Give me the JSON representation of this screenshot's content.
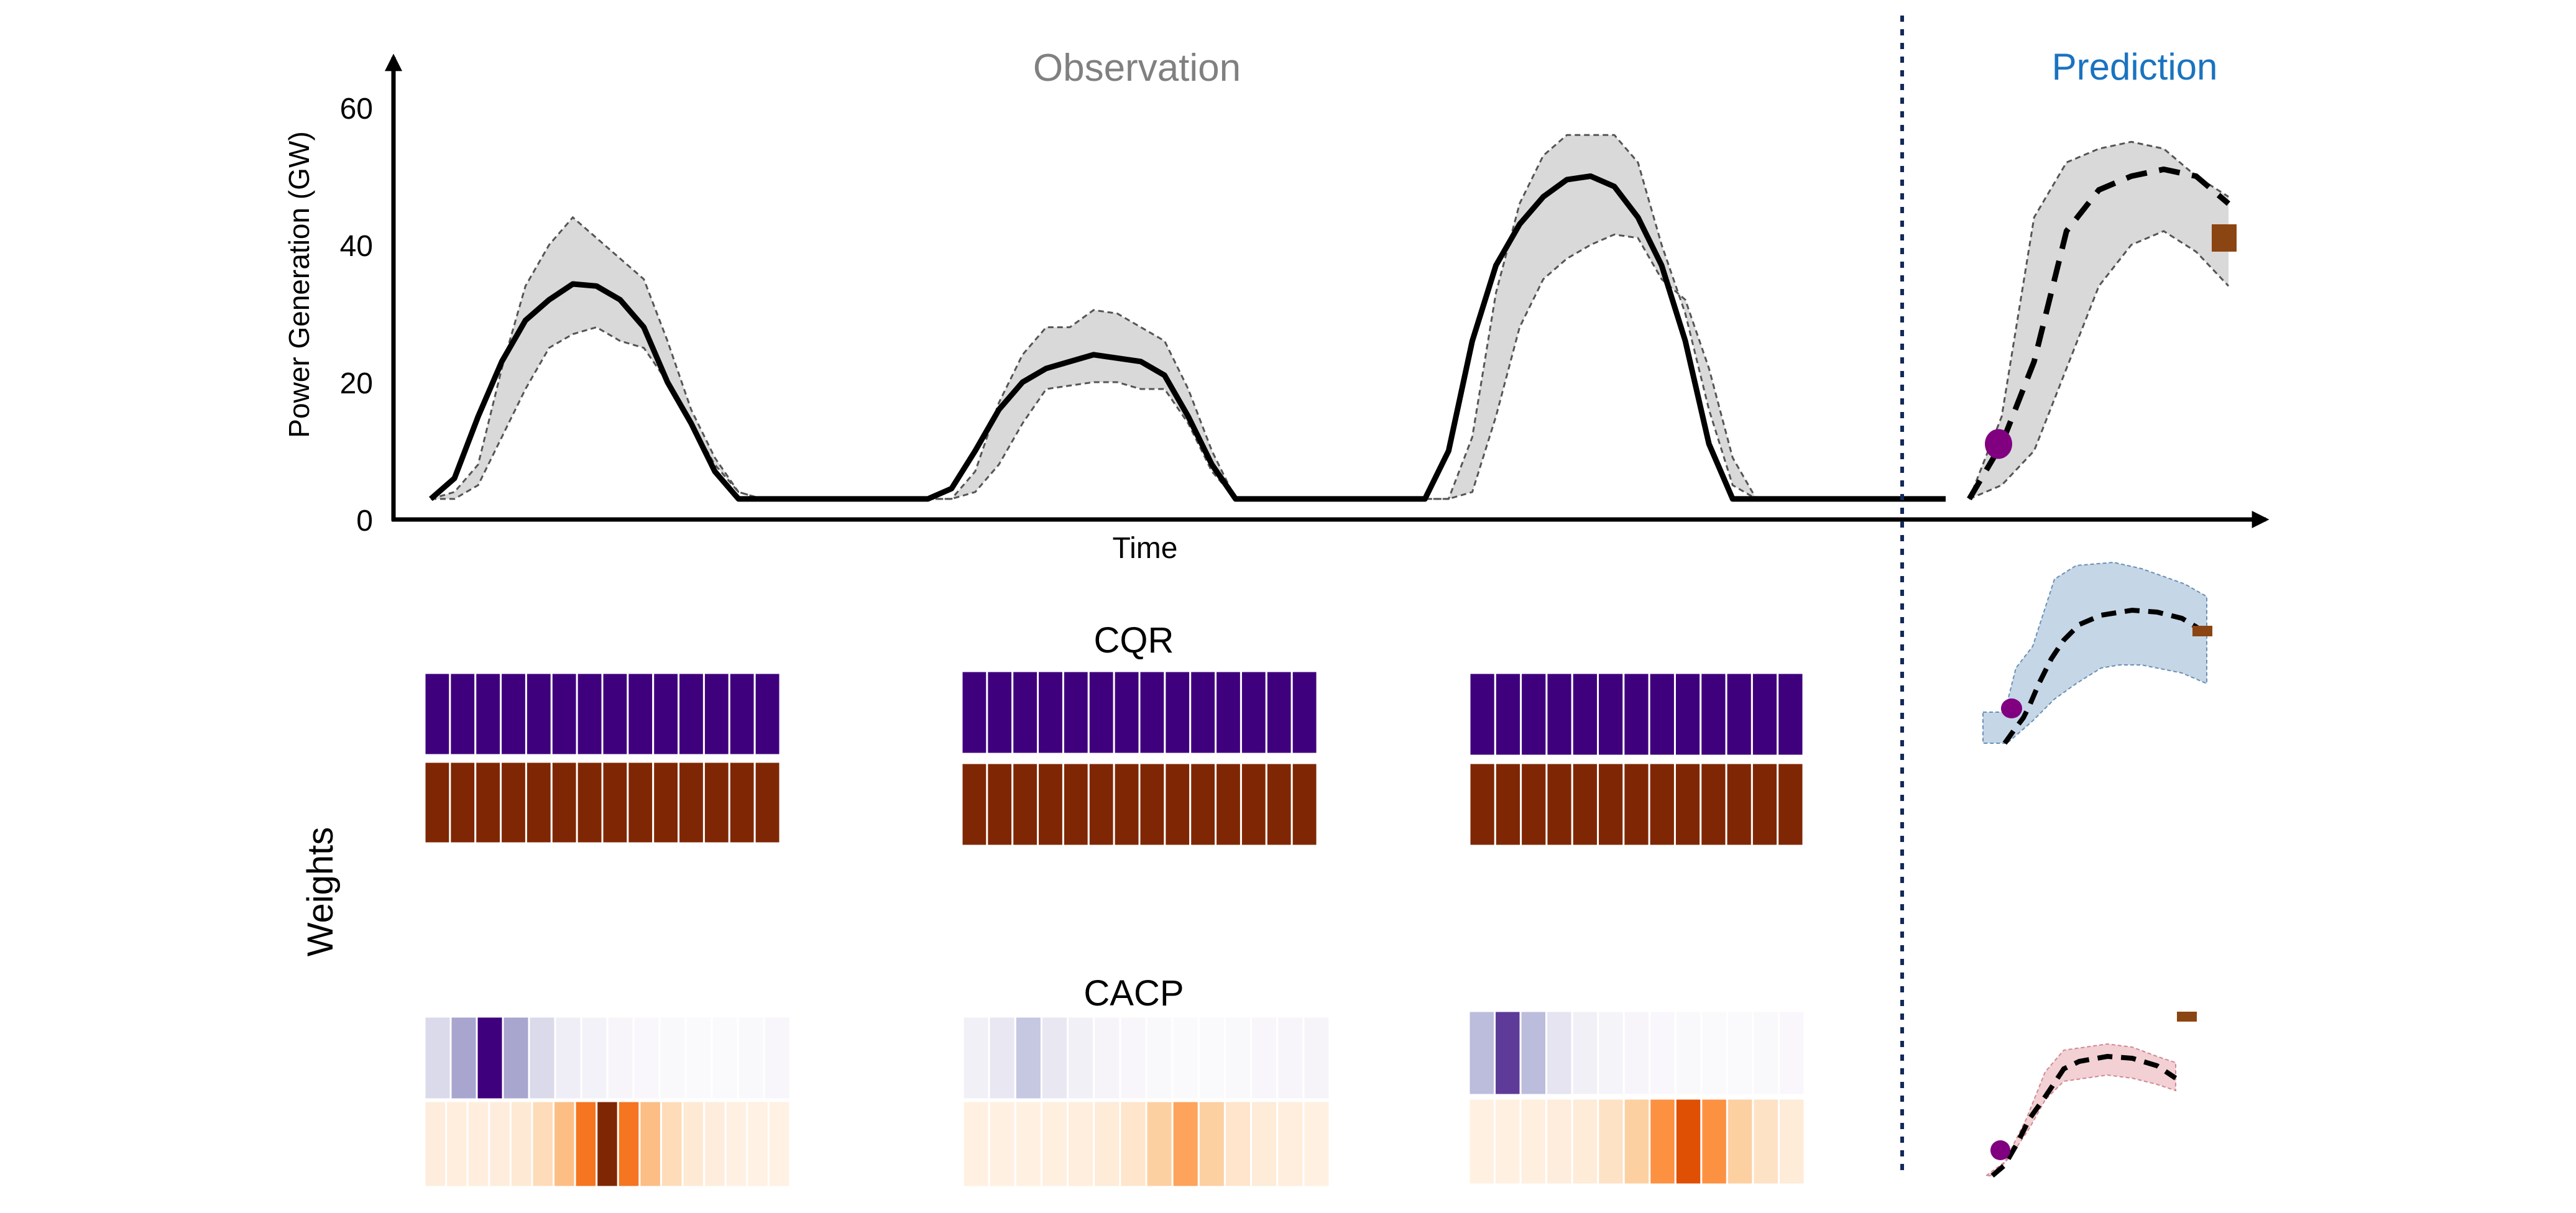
{
  "chart_data": {
    "type": "line",
    "title_left": "Observation",
    "title_right": "Prediction",
    "xlabel": "Time",
    "ylabel": "Power Generation (GW)",
    "yticks": [
      0,
      20,
      40,
      60
    ],
    "ylim": [
      0,
      68
    ],
    "grid": false,
    "colors": {
      "observation_title": "#808080",
      "prediction_title": "#1a73c0",
      "separator": "#14285a",
      "band_fill": "#d9d9d9",
      "band_edge": "#555555",
      "start_marker": "#800080",
      "end_marker": "#8b4513",
      "cqr_band": "#c5d6e6",
      "cacp_band": "#f2d0d4",
      "purple_max": "#3f007d",
      "orange_max": "#7f2704"
    },
    "observation": {
      "x": [
        0,
        1,
        2,
        3,
        4,
        5,
        6,
        7,
        8,
        9,
        10,
        11,
        12,
        13,
        14,
        15,
        16,
        17,
        18,
        19,
        20,
        21,
        22,
        23,
        24,
        25,
        26,
        27,
        28,
        29,
        30,
        31,
        32,
        33,
        34,
        35,
        36,
        37,
        38,
        39,
        40,
        41,
        42,
        43,
        44,
        45,
        46,
        47,
        48,
        49,
        50,
        51,
        52,
        53,
        54,
        55,
        56,
        57,
        58,
        59,
        60,
        61,
        62,
        63,
        64
      ],
      "mean": [
        3,
        6,
        15,
        23,
        29,
        32,
        34.3,
        34,
        32,
        28,
        20,
        14,
        7,
        3,
        3,
        3,
        3,
        3,
        3,
        3,
        3,
        3,
        4.5,
        10,
        16,
        20,
        22,
        23,
        24,
        23.5,
        23,
        21,
        15,
        8,
        3,
        3,
        3,
        3,
        3,
        3,
        3,
        3,
        3,
        10,
        26,
        37,
        43,
        47,
        49.5,
        50,
        48.5,
        44,
        37,
        26,
        11,
        3,
        3,
        3,
        3,
        3,
        3,
        3,
        3,
        3,
        3
      ],
      "upper": [
        3,
        4,
        8,
        22,
        34,
        40,
        44,
        41,
        38,
        35,
        26,
        16,
        9,
        4,
        3,
        3,
        3,
        3,
        3,
        3,
        3,
        3,
        3,
        7,
        17,
        24,
        28,
        28,
        30.5,
        30,
        28,
        26,
        19,
        10,
        3,
        3,
        3,
        3,
        3,
        3,
        3,
        3,
        3,
        3,
        12,
        33,
        46,
        53,
        56,
        56,
        56,
        52,
        40,
        30,
        16,
        5,
        3,
        3,
        3,
        3,
        3,
        3,
        3,
        3,
        3
      ],
      "lower": [
        3,
        3,
        5,
        12,
        19,
        25,
        27,
        28,
        26,
        25,
        20,
        14,
        8,
        4,
        3,
        3,
        3,
        3,
        3,
        3,
        3,
        3,
        3,
        4,
        8,
        14,
        19,
        19.5,
        20,
        20,
        19,
        19,
        14,
        7,
        3,
        3,
        3,
        3,
        3,
        3,
        3,
        3,
        3,
        3,
        4,
        15,
        28,
        35,
        38,
        40,
        41.5,
        41,
        35,
        32,
        22,
        9,
        3,
        3,
        3,
        3,
        3,
        3,
        3,
        3,
        3
      ]
    },
    "prediction": {
      "x": [
        0,
        1,
        2,
        3,
        4,
        5,
        6,
        7,
        8
      ],
      "mean": [
        3,
        11,
        23,
        42,
        48,
        50,
        51,
        50,
        46
      ],
      "upper": [
        3,
        15,
        44,
        52,
        54,
        55,
        54,
        50,
        47
      ],
      "lower": [
        3,
        5,
        10,
        22,
        34,
        40,
        42,
        39,
        34
      ],
      "start_point_value": 11,
      "end_point_value": 41
    },
    "weights": {
      "label": "Weights",
      "cqr": {
        "title": "CQR",
        "panels": [
          {
            "purple": [
              1,
              1,
              1,
              1,
              1,
              1,
              1,
              1,
              1,
              1,
              1,
              1,
              1,
              1
            ],
            "orange": [
              1,
              1,
              1,
              1,
              1,
              1,
              1,
              1,
              1,
              1,
              1,
              1,
              1,
              1
            ]
          },
          {
            "purple": [
              1,
              1,
              1,
              1,
              1,
              1,
              1,
              1,
              1,
              1,
              1,
              1,
              1,
              1
            ],
            "orange": [
              1,
              1,
              1,
              1,
              1,
              1,
              1,
              1,
              1,
              1,
              1,
              1,
              1,
              1
            ]
          },
          {
            "purple": [
              1,
              1,
              1,
              1,
              1,
              1,
              1,
              1,
              1,
              1,
              1,
              1,
              1
            ],
            "orange": [
              1,
              1,
              1,
              1,
              1,
              1,
              1,
              1,
              1,
              1,
              1,
              1,
              1
            ]
          }
        ]
      },
      "cacp": {
        "title": "CACP",
        "panels": [
          {
            "purple": [
              0.3,
              0.55,
              1.0,
              0.55,
              0.3,
              0.15,
              0.1,
              0.06,
              0.04,
              0.03,
              0.02,
              0.02,
              0.03,
              0.05
            ],
            "orange": [
              0.08,
              0.07,
              0.07,
              0.08,
              0.12,
              0.22,
              0.38,
              0.7,
              1.0,
              0.7,
              0.38,
              0.22,
              0.12,
              0.08,
              0.05,
              0.04,
              0.04
            ]
          },
          {
            "purple": [
              0.12,
              0.2,
              0.4,
              0.2,
              0.12,
              0.07,
              0.05,
              0.03,
              0.02,
              0.02,
              0.03,
              0.05,
              0.06,
              0.07
            ],
            "orange": [
              0.05,
              0.05,
              0.05,
              0.06,
              0.07,
              0.1,
              0.16,
              0.3,
              0.5,
              0.3,
              0.16,
              0.1,
              0.07,
              0.05
            ]
          },
          {
            "purple": [
              0.45,
              0.85,
              0.45,
              0.22,
              0.12,
              0.08,
              0.06,
              0.04,
              0.03,
              0.02,
              0.02,
              0.03,
              0.04
            ],
            "orange": [
              0.05,
              0.05,
              0.06,
              0.08,
              0.1,
              0.18,
              0.3,
              0.58,
              0.85,
              0.58,
              0.3,
              0.18,
              0.1
            ]
          }
        ]
      }
    }
  }
}
